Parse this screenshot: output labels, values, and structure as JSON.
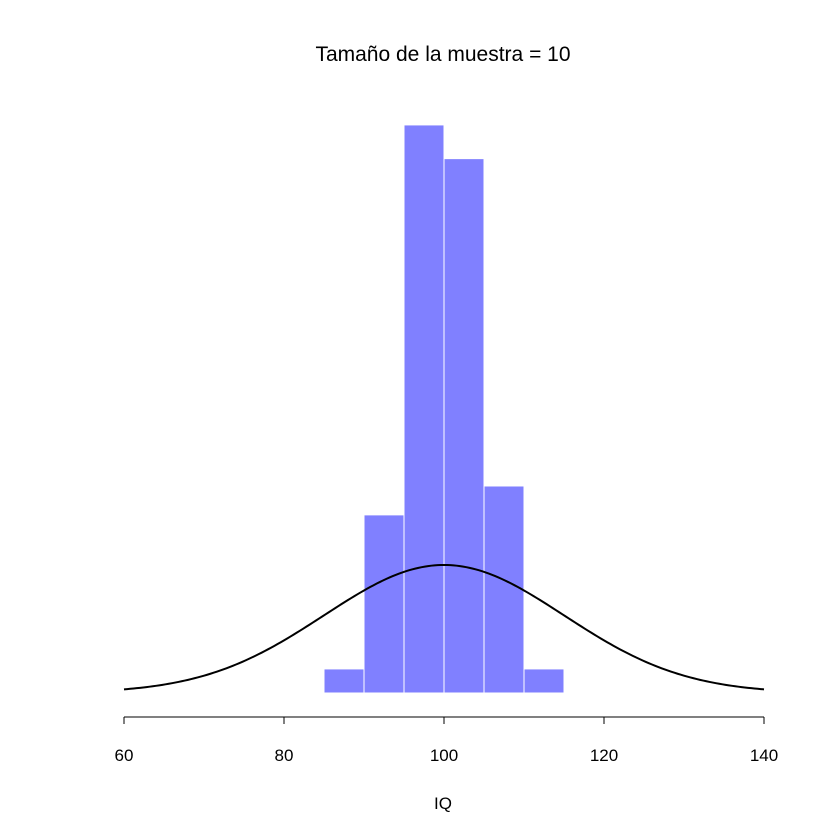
{
  "chart_data": {
    "type": "bar",
    "title": "Tamaño de la muestra = 10",
    "xlabel": "IQ",
    "ylabel": "",
    "xlim": [
      60,
      140
    ],
    "ylim": [
      0,
      0.1238
    ],
    "x_ticks": [
      60,
      80,
      100,
      120,
      140
    ],
    "x_tick_labels": [
      "60",
      "80",
      "100",
      "120",
      "140"
    ],
    "y_axis_visible": false,
    "grid": false,
    "bar_color": "#8080ff",
    "bar_edge_color": "#ffffff",
    "histogram": {
      "bins": [
        [
          85,
          90
        ],
        [
          90,
          95
        ],
        [
          95,
          100
        ],
        [
          100,
          105
        ],
        [
          105,
          110
        ],
        [
          110,
          115
        ]
      ],
      "density": [
        0.005,
        0.037,
        0.118,
        0.111,
        0.043,
        0.005
      ]
    },
    "curve": {
      "type": "normal_density",
      "mean": 100,
      "sd": 15,
      "color": "#000000"
    }
  }
}
